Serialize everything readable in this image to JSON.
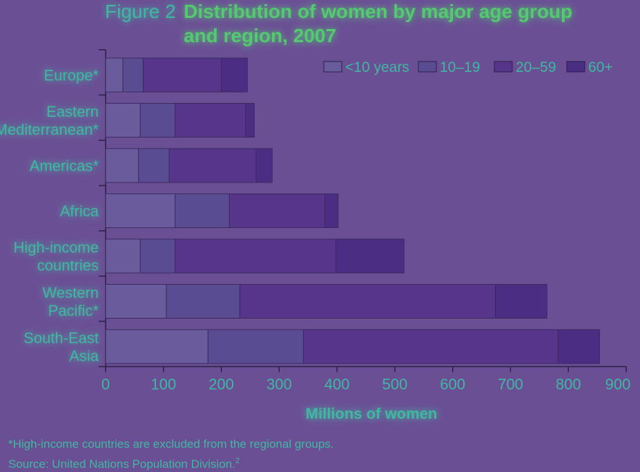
{
  "colors": {
    "background": "#6b4f95",
    "text": "#3fb8a0",
    "title_bold": "#53c96f",
    "axis": "#2a1f45",
    "seg_lt10": "#6a5c9c",
    "seg_10_19": "#5a4c92",
    "seg_20_59": "#56358a",
    "seg_60plus": "#4b2e84"
  },
  "figure": {
    "number": "Figure 2",
    "title_line1": "Distribution of women by major age group",
    "title_line2": "and region, 2007",
    "footnote": "*High-income countries are excluded from the regional groups.",
    "source": "Source: United Nations Population Division."
  },
  "chart_data": {
    "type": "bar",
    "orientation": "horizontal",
    "stacked": true,
    "xlabel": "Millions of women",
    "xlim": [
      0,
      900
    ],
    "xticks": [
      0,
      100,
      200,
      300,
      400,
      500,
      600,
      700,
      800,
      900
    ],
    "legend_position": "top-right",
    "categories": [
      [
        "Europe*"
      ],
      [
        "Eastern",
        "Mediterranean*"
      ],
      [
        "Americas*"
      ],
      [
        "Africa"
      ],
      [
        "High-income",
        "countries"
      ],
      [
        "Western",
        "Pacific*"
      ],
      [
        "South-East",
        "Asia"
      ]
    ],
    "series": [
      {
        "name": "<10 years",
        "values": [
          30,
          60,
          57,
          120,
          60,
          105,
          177
        ]
      },
      {
        "name": "10–19",
        "values": [
          35,
          60,
          53,
          94,
          60,
          127,
          165
        ]
      },
      {
        "name": "20–59",
        "values": [
          135,
          122,
          150,
          165,
          278,
          442,
          440
        ]
      },
      {
        "name": "60+",
        "values": [
          45,
          15,
          28,
          23,
          118,
          89,
          72
        ]
      }
    ]
  }
}
